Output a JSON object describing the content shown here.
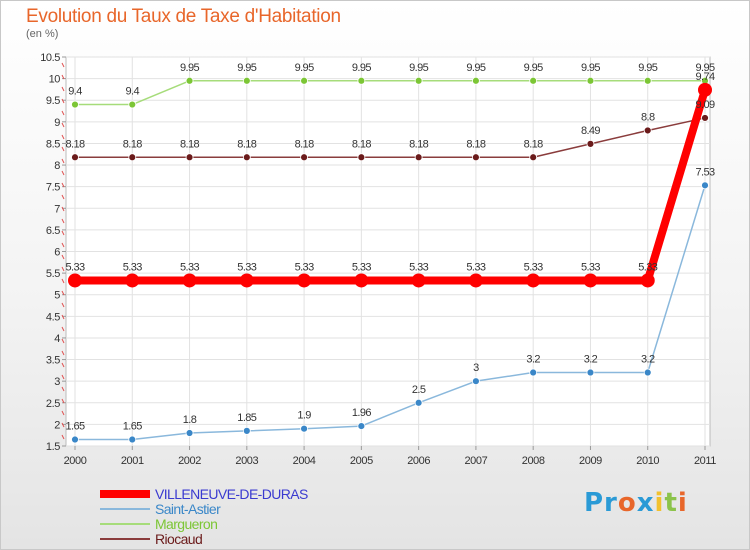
{
  "header": {
    "title": "Evolution du Taux de Taxe d'Habitation",
    "subtitle": "(en %)"
  },
  "logo": {
    "parts": [
      {
        "text": "Pr",
        "color": "#2a9ad6"
      },
      {
        "text": "o",
        "color": "#e8662a"
      },
      {
        "text": "x",
        "color": "#2a9ad6"
      },
      {
        "text": "i",
        "color": "#f2c12e"
      },
      {
        "text": "t",
        "color": "#8bc34a"
      },
      {
        "text": "i",
        "color": "#e8662a"
      }
    ]
  },
  "chart_data": {
    "type": "line",
    "title": "Evolution du Taux de Taxe d'Habitation",
    "subtitle": "(en %)",
    "x": [
      "2000",
      "2001",
      "2002",
      "2003",
      "2004",
      "2005",
      "2006",
      "2007",
      "2008",
      "2009",
      "2010",
      "2011"
    ],
    "ylim": [
      1.5,
      10.5
    ],
    "yticks": [
      "1.5",
      "2",
      "2.5",
      "3",
      "3.5",
      "4",
      "4.5",
      "5",
      "5.5",
      "6",
      "6.5",
      "7",
      "7.5",
      "8",
      "8.5",
      "9",
      "9.5",
      "10",
      "10.5"
    ],
    "grid": true,
    "legend_position": "bottom-left",
    "series": [
      {
        "name": "VILLENEUVE-DE-DURAS",
        "color": "#ff0000",
        "line_color": "#ff0000",
        "width": 8,
        "marker": 7,
        "values": [
          5.33,
          5.33,
          5.33,
          5.33,
          5.33,
          5.33,
          5.33,
          5.33,
          5.33,
          5.33,
          5.33,
          9.74
        ],
        "labels": [
          "5.33",
          "5.33",
          "5.33",
          "5.33",
          "5.33",
          "5.33",
          "5.33",
          "5.33",
          "5.33",
          "5.33",
          "5.33",
          "9.74"
        ]
      },
      {
        "name": "Saint-Astier",
        "color": "#3a87c8",
        "line_color": "#8ab8dc",
        "width": 1.5,
        "marker": 3,
        "values": [
          1.65,
          1.65,
          1.8,
          1.85,
          1.9,
          1.96,
          2.5,
          3,
          3.2,
          3.2,
          3.2,
          7.53
        ],
        "labels": [
          "1.65",
          "1.65",
          "1.8",
          "1.85",
          "1.9",
          "1.96",
          "2.5",
          "3",
          "3.2",
          "3.2",
          "3.2",
          "7.53"
        ]
      },
      {
        "name": "Margueron",
        "color": "#7cc635",
        "line_color": "#a6dc7a",
        "width": 1.5,
        "marker": 3,
        "values": [
          9.4,
          9.4,
          9.95,
          9.95,
          9.95,
          9.95,
          9.95,
          9.95,
          9.95,
          9.95,
          9.95,
          9.95
        ],
        "labels": [
          "9.4",
          "9.4",
          "9.95",
          "9.95",
          "9.95",
          "9.95",
          "9.95",
          "9.95",
          "9.95",
          "9.95",
          "9.95",
          "9.95"
        ]
      },
      {
        "name": "Riocaud",
        "color": "#6b1b1b",
        "line_color": "#8a3c3c",
        "width": 1.5,
        "marker": 3,
        "values": [
          8.18,
          8.18,
          8.18,
          8.18,
          8.18,
          8.18,
          8.18,
          8.18,
          8.18,
          8.49,
          8.8,
          9.09
        ],
        "labels": [
          "8.18",
          "8.18",
          "8.18",
          "8.18",
          "8.18",
          "8.18",
          "8.18",
          "8.18",
          "8.18",
          "8.49",
          "8.8",
          "9.09"
        ]
      }
    ]
  }
}
